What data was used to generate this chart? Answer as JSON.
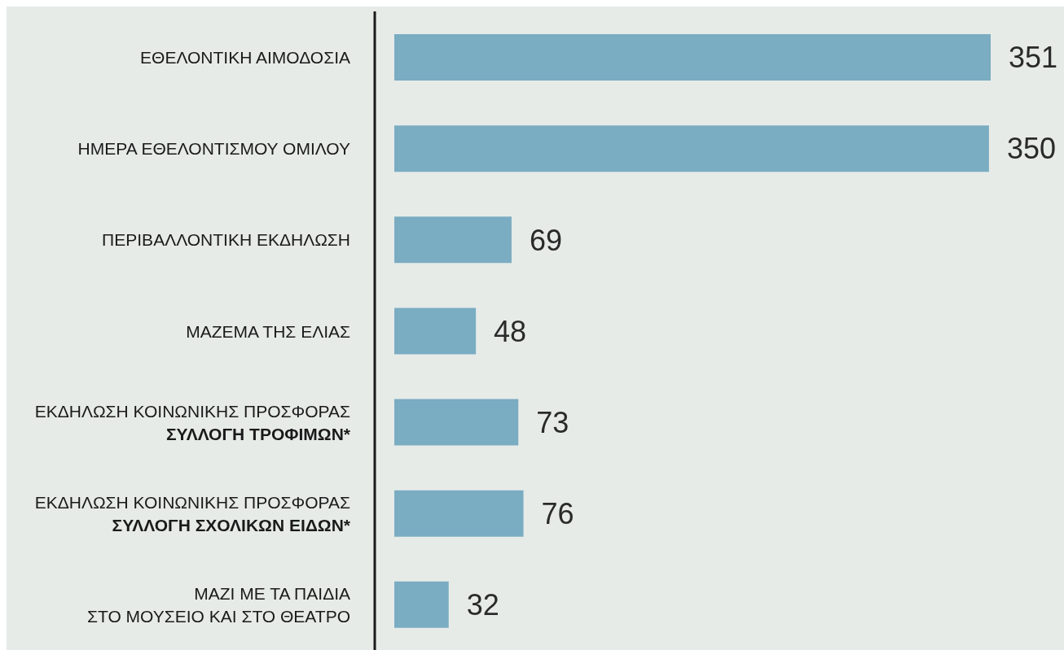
{
  "chart_data": {
    "type": "bar",
    "orientation": "horizontal",
    "categories": [
      "ΕΘΕΛΟΝΤΙΚΗ ΑΙΜΟΔΟΣΙΑ",
      "ΗΜΕΡΑ ΕΘΕΛΟΝΤΙΣΜΟΥ ΟΜΙΛΟΥ",
      "ΠΕΡΙΒΑΛΛΟΝΤΙΚΗ ΕΚΔΗΛΩΣΗ",
      "ΜΑΖΕΜΑ ΤΗΣ ΕΛΙΑΣ",
      "ΕΚΔΗΛΩΣΗ ΚΟΙΝΩΝΙΚΗΣ ΠΡΟΣΦΟΡΑΣ\nΣΥΛΛΟΓΗ ΤΡΟΦΙΜΩΝ*",
      "ΕΚΔΗΛΩΣΗ ΚΟΙΝΩΝΙΚΗΣ ΠΡΟΣΦΟΡΑΣ\nΣΥΛΛΟΓΗ ΣΧΟΛΙΚΩΝ ΕΙΔΩΝ*",
      "ΜΑΖΙ ΜΕ ΤΑ ΠΑΙΔΙΑ\nΣΤΟ ΜΟΥΣΕΙΟ ΚΑΙ ΣΤΟ ΘΕΑΤΡΟ"
    ],
    "values": [
      351,
      350,
      69,
      48,
      73,
      76,
      32
    ],
    "color": "#7aacc2",
    "data_labels": true
  }
}
